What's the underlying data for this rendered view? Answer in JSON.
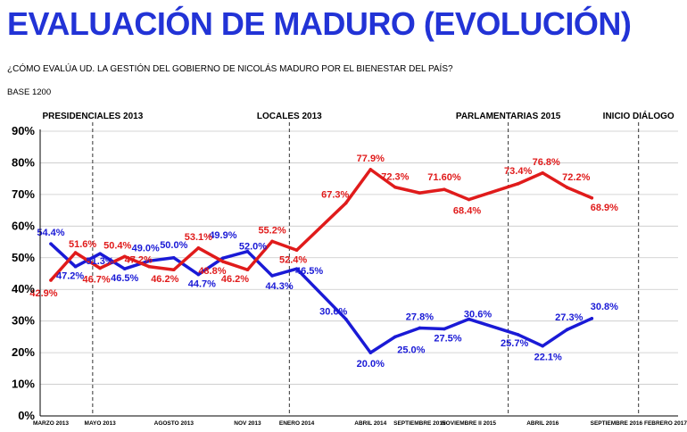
{
  "header": {
    "title": "EVALUACIÓN DE MADURO (EVOLUCIÓN)",
    "subtitle": "¿CÓMO EVALÚA UD. LA GESTIÓN DEL GOBIERNO DE NICOLÁS MADURO POR EL BIENESTAR DEL PAÍS?",
    "base": "BASE 1200"
  },
  "colors": {
    "title": "#2233d6",
    "blue_series": "#1a1ad6",
    "red_series": "#e01b1b"
  },
  "chart_data": {
    "type": "line",
    "ylim": [
      0,
      90
    ],
    "yticks": [
      "0%",
      "10%",
      "20%",
      "30%",
      "40%",
      "50%",
      "60%",
      "70%",
      "80%",
      "90%"
    ],
    "xtick_labels": [
      {
        "i": 0,
        "label": "MARZO 2013"
      },
      {
        "i": 2,
        "label": "MAYO 2013"
      },
      {
        "i": 5,
        "label": "AGOSTO 2013"
      },
      {
        "i": 8,
        "label": "NOV 2013"
      },
      {
        "i": 10,
        "label": "ENERO 2014"
      },
      {
        "i": 13,
        "label": "ABRIL 2014"
      },
      {
        "i": 15,
        "label": "SEPTIEMBRE 2015"
      },
      {
        "i": 17,
        "label": "NOVIEMBRE II 2015"
      },
      {
        "i": 20,
        "label": "ABRIL 2016"
      },
      {
        "i": 23,
        "label": "SEPTIEMBRE 2016"
      },
      {
        "i": 25,
        "label": "FEBRERO 2017"
      }
    ],
    "events": [
      {
        "i": 1.7,
        "label": "PRESIDENCIALES 2013"
      },
      {
        "i": 9.7,
        "label": "LOCALES 2013"
      },
      {
        "i": 18.6,
        "label": "PARLAMENTARIAS 2015"
      },
      {
        "i": 23.9,
        "label": "INICIO DIÁLOGO"
      }
    ],
    "series": [
      {
        "color": "#1a1ad6",
        "values": [
          54.4,
          47.2,
          51.3,
          46.5,
          49.0,
          50.0,
          44.7,
          49.9,
          52.0,
          44.3,
          46.5,
          30.6,
          20.0,
          25.0,
          27.8,
          27.5,
          30.6,
          25.7,
          22.1,
          27.3,
          30.8
        ],
        "labels": [
          {
            "k": 0,
            "text": "54.4%",
            "dx": 0,
            "dy": -9
          },
          {
            "k": 1,
            "text": "47.2%",
            "dx": -6,
            "dy": 14
          },
          {
            "k": 2,
            "text": "51.3%",
            "dx": 0,
            "dy": 12
          },
          {
            "k": 3,
            "text": "46.5%",
            "dx": 0,
            "dy": 14
          },
          {
            "k": 4,
            "text": "49.0%",
            "dx": -4,
            "dy": -11
          },
          {
            "k": 5,
            "text": "50.0%",
            "dx": 0,
            "dy": -11
          },
          {
            "k": 6,
            "text": "44.7%",
            "dx": 4,
            "dy": 14
          },
          {
            "k": 7,
            "text": "49.9%",
            "dx": 0,
            "dy": -22
          },
          {
            "k": 8,
            "text": "52.0%",
            "dx": 6,
            "dy": -2
          },
          {
            "k": 9,
            "text": "44.3%",
            "dx": 8,
            "dy": 15
          },
          {
            "k": 10,
            "text": "46.5%",
            "dx": 14,
            "dy": 6
          },
          {
            "k": 11,
            "text": "30.6%",
            "dx": -14,
            "dy": -5
          },
          {
            "k": 12,
            "text": "20.0%",
            "dx": 0,
            "dy": 16
          },
          {
            "k": 13,
            "text": "25.0%",
            "dx": 18,
            "dy": 18
          },
          {
            "k": 14,
            "text": "27.8%",
            "dx": 0,
            "dy": -9
          },
          {
            "k": 15,
            "text": "27.5%",
            "dx": 4,
            "dy": 14
          },
          {
            "k": 16,
            "text": "30.6%",
            "dx": 10,
            "dy": -2
          },
          {
            "k": 17,
            "text": "25.7%",
            "dx": -4,
            "dy": 13
          },
          {
            "k": 18,
            "text": "22.1%",
            "dx": 6,
            "dy": 16
          },
          {
            "k": 19,
            "text": "27.3%",
            "dx": 2,
            "dy": -10
          },
          {
            "k": 20,
            "text": "30.8%",
            "dx": 14,
            "dy": -10
          }
        ]
      },
      {
        "color": "#e01b1b",
        "values": [
          42.9,
          51.6,
          46.7,
          50.4,
          47.2,
          46.2,
          53.1,
          48.8,
          46.2,
          55.2,
          52.4,
          67.3,
          77.9,
          72.3,
          70.5,
          71.6,
          68.4,
          73.4,
          76.8,
          72.2,
          68.9
        ],
        "labels": [
          {
            "k": 0,
            "text": "42.9%",
            "dx": -8,
            "dy": 18
          },
          {
            "k": 1,
            "text": "51.6%",
            "dx": 8,
            "dy": -6
          },
          {
            "k": 2,
            "text": "46.7%",
            "dx": -4,
            "dy": 16
          },
          {
            "k": 3,
            "text": "50.4%",
            "dx": -8,
            "dy": -9
          },
          {
            "k": 4,
            "text": "47.2%",
            "dx": -12,
            "dy": -4
          },
          {
            "k": 5,
            "text": "46.2%",
            "dx": -10,
            "dy": 14
          },
          {
            "k": 6,
            "text": "53.1%",
            "dx": 0,
            "dy": -9
          },
          {
            "k": 7,
            "text": "48.8%",
            "dx": -12,
            "dy": 14
          },
          {
            "k": 8,
            "text": "46.2%",
            "dx": -14,
            "dy": 14
          },
          {
            "k": 9,
            "text": "55.2%",
            "dx": 0,
            "dy": -9
          },
          {
            "k": 10,
            "text": "52.4%",
            "dx": -4,
            "dy": 14
          },
          {
            "k": 11,
            "text": "67.3%",
            "dx": -12,
            "dy": -6
          },
          {
            "k": 12,
            "text": "77.9%",
            "dx": 0,
            "dy": -9
          },
          {
            "k": 13,
            "text": "72.3%",
            "dx": 0,
            "dy": -8
          },
          {
            "k": 14,
            "text": "",
            "dx": 0,
            "dy": 0
          },
          {
            "k": 15,
            "text": "71.60%",
            "dx": 0,
            "dy": -10
          },
          {
            "k": 16,
            "text": "68.4%",
            "dx": -2,
            "dy": 16
          },
          {
            "k": 17,
            "text": "73.4%",
            "dx": 0,
            "dy": -11
          },
          {
            "k": 18,
            "text": "76.8%",
            "dx": 4,
            "dy": -9
          },
          {
            "k": 19,
            "text": "72.2%",
            "dx": 10,
            "dy": -8
          },
          {
            "k": 20,
            "text": "68.9%",
            "dx": 14,
            "dy": 14
          }
        ]
      }
    ],
    "point_index": [
      0,
      1,
      2,
      3,
      4,
      5,
      6,
      7,
      8,
      9,
      10,
      12,
      13,
      14,
      15,
      16,
      17,
      19,
      20,
      21,
      22
    ]
  }
}
